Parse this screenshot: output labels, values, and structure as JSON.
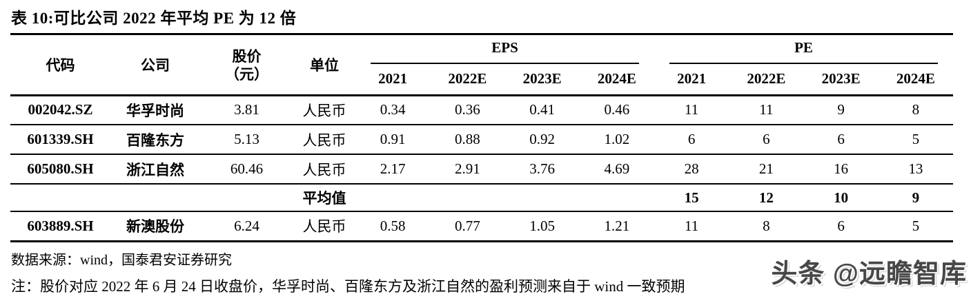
{
  "title": "表 10:可比公司 2022 年平均 PE 为 12 倍",
  "table": {
    "headers": {
      "code": "代码",
      "company": "公司",
      "price_line1": "股价",
      "price_line2": "（元）",
      "unit": "单位",
      "eps_group": "EPS",
      "pe_group": "PE",
      "year_cols": [
        "2021",
        "2022E",
        "2023E",
        "2024E",
        "2021",
        "2022E",
        "2023E",
        "2024E"
      ]
    },
    "rows": [
      {
        "code": "002042.SZ",
        "company": "华孚时尚",
        "price": "3.81",
        "unit": "人民币",
        "eps": [
          "0.34",
          "0.36",
          "0.41",
          "0.46"
        ],
        "pe": [
          "11",
          "11",
          "9",
          "8"
        ],
        "bold": false,
        "is_average": false
      },
      {
        "code": "601339.SH",
        "company": "百隆东方",
        "price": "5.13",
        "unit": "人民币",
        "eps": [
          "0.91",
          "0.88",
          "0.92",
          "1.02"
        ],
        "pe": [
          "6",
          "6",
          "6",
          "5"
        ],
        "bold": false,
        "is_average": false
      },
      {
        "code": "605080.SH",
        "company": "浙江自然",
        "price": "60.46",
        "unit": "人民币",
        "eps": [
          "2.17",
          "2.91",
          "3.76",
          "4.69"
        ],
        "pe": [
          "28",
          "21",
          "16",
          "13"
        ],
        "bold": false,
        "is_average": false
      },
      {
        "code": "",
        "company": "",
        "price": "",
        "unit": "平均值",
        "eps": [
          "",
          "",
          "",
          ""
        ],
        "pe": [
          "15",
          "12",
          "10",
          "9"
        ],
        "bold": true,
        "is_average": true
      },
      {
        "code": "603889.SH",
        "company": "新澳股份",
        "price": "6.24",
        "unit": "人民币",
        "eps": [
          "0.58",
          "0.77",
          "1.05",
          "1.21"
        ],
        "pe": [
          "11",
          "8",
          "6",
          "5"
        ],
        "bold": false,
        "is_average": false
      }
    ]
  },
  "footer": {
    "source": "数据来源：wind，国泰君安证券研究",
    "note": "注：股价对应 2022 年 6 月 24 日收盘价，华孚时尚、百隆东方及浙江自然的盈利预测来自于 wind 一致预期",
    "watermark": "头条 @远瞻智库"
  },
  "colors": {
    "text": "#000000",
    "background": "#ffffff",
    "watermark": "#474747",
    "rule": "#000000"
  }
}
